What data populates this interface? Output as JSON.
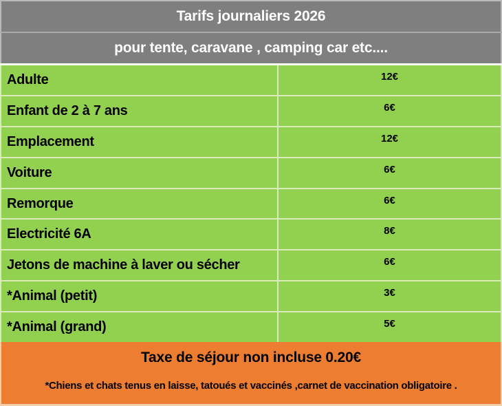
{
  "header": {
    "title": "Tarifs journaliers 2026",
    "subtitle": "pour tente, caravane , camping car etc...."
  },
  "rows": [
    {
      "label": "Adulte",
      "price": "12€"
    },
    {
      "label": "Enfant de 2 à 7 ans",
      "price": "6€"
    },
    {
      "label": "Emplacement",
      "price": "12€"
    },
    {
      "label": "Voiture",
      "price": "6€"
    },
    {
      "label": "Remorque",
      "price": "6€"
    },
    {
      "label": "Electricité 6A",
      "price": "8€"
    },
    {
      "label": "Jetons de machine à laver ou sécher",
      "price": "6€"
    },
    {
      "label": "*Animal (petit)",
      "price": "3€"
    },
    {
      "label": "*Animal (grand)",
      "price": "5€"
    }
  ],
  "footer": {
    "tax_note": "Taxe de séjour non incluse 0.20€",
    "animals_note": "*Chiens et chats tenus en laisse, tatoués et vaccinés ,carnet de vaccination obligatoire ."
  },
  "colors": {
    "header_bg": "#7F7F7F",
    "header_text": "#FFFFFF",
    "row_bg": "#92D050",
    "row_divider": "#D9EABE",
    "footer_bg": "#ED7D31",
    "body_text": "#000000"
  }
}
